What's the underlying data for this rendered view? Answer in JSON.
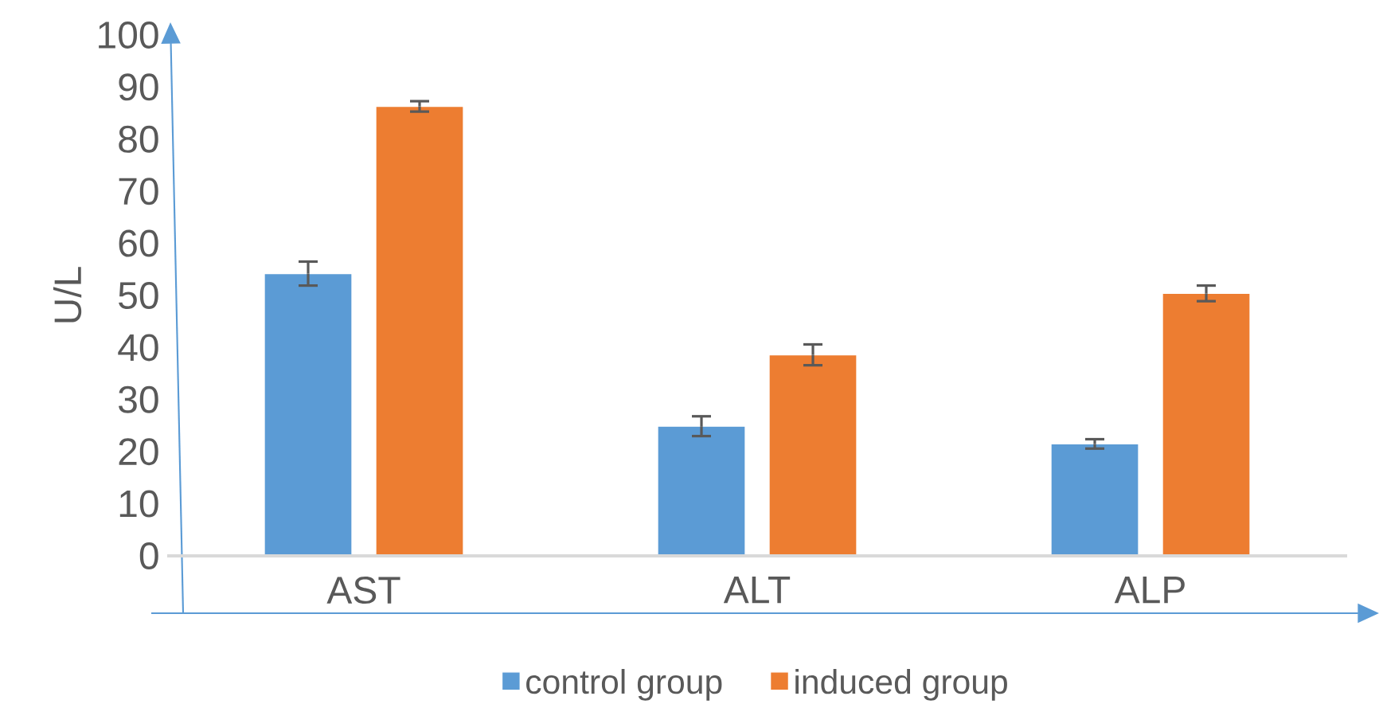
{
  "chart_data": {
    "type": "bar",
    "ylabel": "U/L",
    "categories": [
      "AST",
      "ALT",
      "ALP"
    ],
    "series": [
      {
        "name": "control group",
        "color": "#5b9bd5",
        "values": [
          54.2,
          24.9,
          21.5
        ],
        "errors": [
          2.3,
          1.9,
          0.9
        ]
      },
      {
        "name": "induced group",
        "color": "#ed7d31",
        "values": [
          86.3,
          38.6,
          50.4
        ],
        "errors": [
          1.0,
          2.0,
          1.5
        ]
      }
    ],
    "ylim": [
      0,
      100
    ],
    "yticks": [
      0,
      10,
      20,
      30,
      40,
      50,
      60,
      70,
      80,
      90,
      100
    ],
    "legend": "bottom"
  }
}
